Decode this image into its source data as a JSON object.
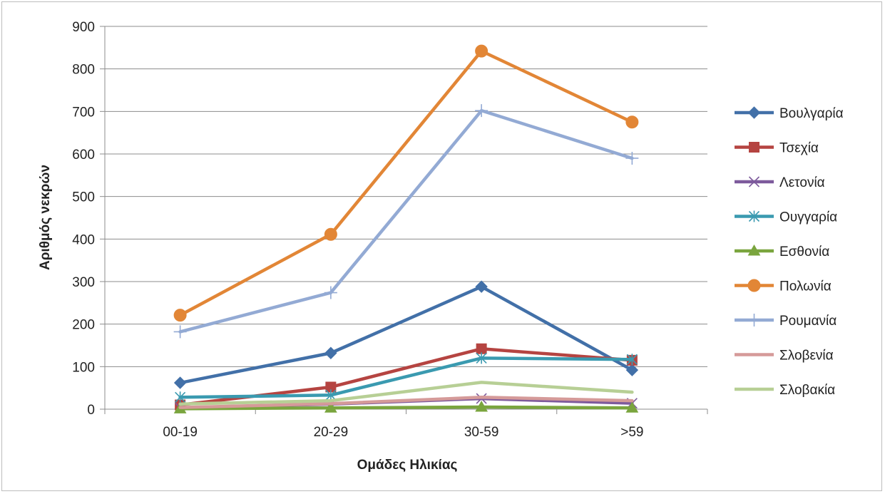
{
  "chart_data": {
    "type": "line",
    "xlabel": "Ομάδες Ηλικίας",
    "ylabel": "Αριθμός νεκρών",
    "categories": [
      "00-19",
      "20-29",
      "30-59",
      ">59"
    ],
    "ylim": [
      0,
      900
    ],
    "yticks": [
      0,
      100,
      200,
      300,
      400,
      500,
      600,
      700,
      800,
      900
    ],
    "grid": "horizontal",
    "legend_position": "right",
    "series": [
      {
        "name": "Βουλγαρία",
        "color": "#4270a8",
        "marker": "diamond",
        "values": [
          62,
          132,
          288,
          92
        ]
      },
      {
        "name": "Τσεχία",
        "color": "#b54441",
        "marker": "square",
        "values": [
          10,
          52,
          142,
          115
        ]
      },
      {
        "name": "Λετονία",
        "color": "#7d5a9c",
        "marker": "x",
        "values": [
          3,
          12,
          25,
          14
        ]
      },
      {
        "name": "Ουγγαρία",
        "color": "#3a9ab0",
        "marker": "asterisk",
        "values": [
          28,
          33,
          120,
          117
        ]
      },
      {
        "name": "Εσθονία",
        "color": "#7aa53e",
        "marker": "triangle",
        "values": [
          1,
          3,
          5,
          3
        ]
      },
      {
        "name": "Πολωνία",
        "color": "#e28636",
        "marker": "circle",
        "values": [
          221,
          411,
          842,
          675
        ]
      },
      {
        "name": "Ρουμανία",
        "color": "#93aad4",
        "marker": "plus",
        "values": [
          182,
          274,
          702,
          590
        ]
      },
      {
        "name": "Σλοβενία",
        "color": "#d59a99",
        "marker": "none",
        "values": [
          4,
          13,
          28,
          20
        ]
      },
      {
        "name": "Σλοβακία",
        "color": "#b7cf95",
        "marker": "none",
        "values": [
          12,
          20,
          63,
          40
        ]
      }
    ]
  }
}
